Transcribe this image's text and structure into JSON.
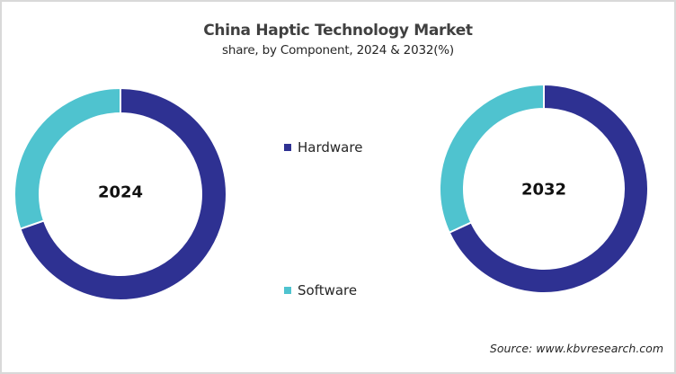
{
  "header": {
    "title": "China Haptic Technology Market",
    "subtitle": "share, by Component, 2024 & 2032(%)"
  },
  "legend": [
    {
      "label": "Hardware",
      "color": "#2e3192"
    },
    {
      "label": "Software",
      "color": "#4fc3cf"
    }
  ],
  "source": "Source: www.kbvresearch.com",
  "chart_data": [
    {
      "type": "pie",
      "variant": "donut",
      "title": "China Haptic Technology Market",
      "subtitle": "share, by Component, 2024 & 2032(%)",
      "center_label": "2024",
      "categories": [
        "Hardware",
        "Software"
      ],
      "values": [
        69.7,
        30.3
      ],
      "colors": [
        "#2e3192",
        "#4fc3cf"
      ],
      "legend_position": "center"
    },
    {
      "type": "pie",
      "variant": "donut",
      "title": "China Haptic Technology Market",
      "subtitle": "share, by Component, 2024 & 2032(%)",
      "center_label": "2032",
      "categories": [
        "Hardware",
        "Software"
      ],
      "values": [
        68.1,
        31.9
      ],
      "colors": [
        "#2e3192",
        "#4fc3cf"
      ],
      "legend_position": "center"
    }
  ]
}
